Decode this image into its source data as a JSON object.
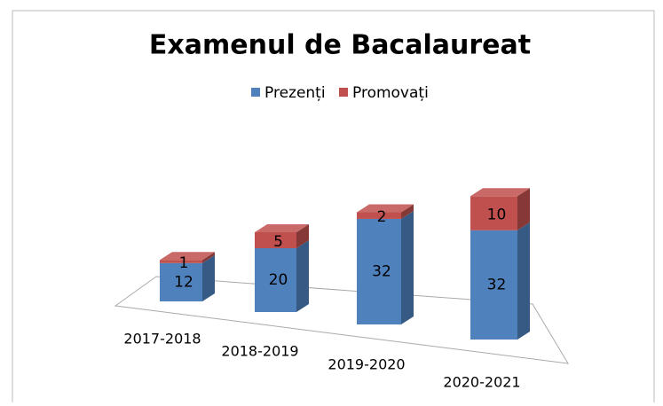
{
  "chart_data": {
    "type": "bar",
    "stacked": true,
    "title": "Examenul de Bacalaureat",
    "categories": [
      "2017-2018",
      "2018-2019",
      "2019-2020",
      "2020-2021"
    ],
    "series": [
      {
        "name": "Prezenți",
        "color": "#4f81bd",
        "values": [
          12,
          20,
          32,
          32
        ]
      },
      {
        "name": "Promovați",
        "color": "#c0504d",
        "values": [
          1,
          5,
          2,
          10
        ]
      }
    ],
    "legend": "top"
  }
}
